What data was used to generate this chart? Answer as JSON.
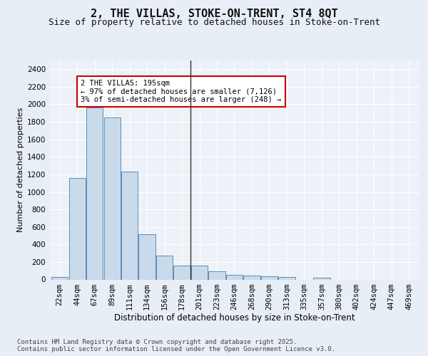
{
  "title1": "2, THE VILLAS, STOKE-ON-TRENT, ST4 8QT",
  "title2": "Size of property relative to detached houses in Stoke-on-Trent",
  "xlabel": "Distribution of detached houses by size in Stoke-on-Trent",
  "ylabel": "Number of detached properties",
  "categories": [
    "22sqm",
    "44sqm",
    "67sqm",
    "89sqm",
    "111sqm",
    "134sqm",
    "156sqm",
    "178sqm",
    "201sqm",
    "223sqm",
    "246sqm",
    "268sqm",
    "290sqm",
    "313sqm",
    "335sqm",
    "357sqm",
    "380sqm",
    "402sqm",
    "424sqm",
    "447sqm",
    "469sqm"
  ],
  "values": [
    30,
    1160,
    1960,
    1850,
    1230,
    515,
    275,
    155,
    155,
    90,
    50,
    45,
    40,
    25,
    0,
    20,
    0,
    0,
    0,
    0,
    0
  ],
  "bar_color": "#c9daea",
  "bar_edge_color": "#5b8db8",
  "vline_index": 8,
  "vline_color": "#333333",
  "annotation_text": "2 THE VILLAS: 195sqm\n← 97% of detached houses are smaller (7,126)\n3% of semi-detached houses are larger (248) →",
  "annotation_box_color": "#ffffff",
  "annotation_box_edge": "#cc0000",
  "ylim": [
    0,
    2500
  ],
  "yticks": [
    0,
    200,
    400,
    600,
    800,
    1000,
    1200,
    1400,
    1600,
    1800,
    2000,
    2200,
    2400
  ],
  "bg_color": "#e8eef5",
  "plot_bg_color": "#edf2f8",
  "footer": "Contains HM Land Registry data © Crown copyright and database right 2025.\nContains public sector information licensed under the Open Government Licence v3.0.",
  "title1_fontsize": 11,
  "title2_fontsize": 9,
  "xlabel_fontsize": 8.5,
  "ylabel_fontsize": 8,
  "tick_fontsize": 7.5,
  "annotation_fontsize": 7.5,
  "footer_fontsize": 6.5
}
